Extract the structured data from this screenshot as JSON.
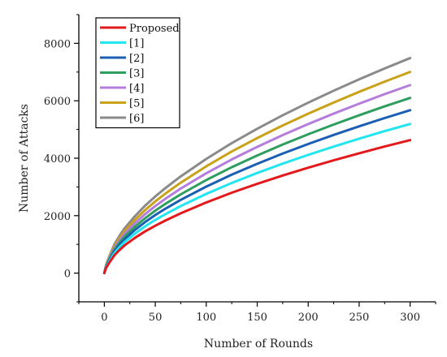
{
  "chart_data": {
    "type": "line",
    "xlabel": "Number of Rounds",
    "ylabel": "Number of Attacks",
    "xlim": [
      -25,
      325
    ],
    "ylim": [
      -1000,
      9000
    ],
    "xticks": [
      0,
      50,
      100,
      150,
      200,
      250,
      300
    ],
    "yticks": [
      0,
      2000,
      4000,
      6000,
      8000
    ],
    "grid": false,
    "legend_position": "top-left",
    "x": [
      0,
      1,
      2,
      5,
      10,
      15,
      20,
      30,
      40,
      50,
      60,
      75,
      100,
      125,
      150,
      175,
      200,
      225,
      250,
      275,
      300
    ],
    "series": [
      {
        "name": "Proposed",
        "color": "#e3191c",
        "values": [
          0,
          110,
          196,
          368,
          624,
          808,
          968,
          1226,
          1452,
          1651,
          1832,
          2083,
          2459,
          2799,
          3108,
          3399,
          3670,
          3927,
          4172,
          4408,
          4630
        ]
      },
      {
        "name": "[1]",
        "color": "#22e5f0",
        "values": [
          0,
          123,
          219,
          413,
          700,
          906,
          1085,
          1375,
          1628,
          1852,
          2054,
          2336,
          2757,
          3139,
          3486,
          3812,
          4116,
          4404,
          4679,
          4943,
          5193
        ]
      },
      {
        "name": "[2]",
        "color": "#1a5fb4",
        "values": [
          0,
          134,
          240,
          451,
          764,
          990,
          1185,
          1502,
          1778,
          2022,
          2244,
          2551,
          3011,
          3428,
          3807,
          4163,
          4495,
          4810,
          5110,
          5398,
          5671
        ]
      },
      {
        "name": "[3]",
        "color": "#2e9e5e",
        "values": [
          0,
          144,
          258,
          485,
          822,
          1064,
          1275,
          1615,
          1912,
          2175,
          2413,
          2743,
          3238,
          3687,
          4094,
          4477,
          4834,
          5173,
          5495,
          5805,
          6099
        ]
      },
      {
        "name": "[4]",
        "color": "#b57ddb",
        "values": [
          0,
          155,
          277,
          521,
          882,
          1142,
          1368,
          1734,
          2053,
          2334,
          2590,
          2944,
          3476,
          3957,
          4395,
          4805,
          5189,
          5552,
          5899,
          6231,
          6546
        ]
      },
      {
        "name": "[5]",
        "color": "#c9a21a",
        "values": [
          0,
          166,
          296,
          557,
          944,
          1222,
          1464,
          1855,
          2196,
          2497,
          2771,
          3150,
          3719,
          4234,
          4702,
          5141,
          5551,
          5940,
          6311,
          6666,
          7004
        ]
      },
      {
        "name": "[6]",
        "color": "#8a8a8a",
        "values": [
          0,
          177,
          317,
          596,
          1009,
          1306,
          1565,
          1983,
          2348,
          2670,
          2962,
          3368,
          3975,
          4526,
          5026,
          5496,
          5934,
          6350,
          6746,
          7126,
          7487
        ]
      }
    ]
  }
}
